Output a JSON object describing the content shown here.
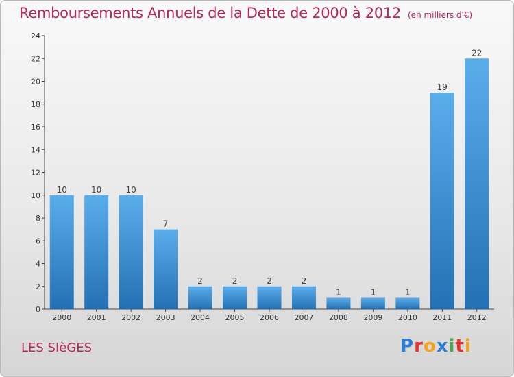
{
  "header": {
    "title": "Remboursements Annuels de la Dette de 2000 à 2012",
    "unit": "(en milliers d'€)"
  },
  "footer": {
    "commune": "LES SIèGES",
    "logo": {
      "letters": [
        "P",
        "r",
        "o",
        "x",
        "i",
        "t",
        "i"
      ],
      "colors": [
        "#2a7fd4",
        "#e8312f",
        "#f3a21b",
        "#2a7fd4",
        "#4aa84c",
        "#e8312f",
        "#f3a21b"
      ]
    }
  },
  "chart_data": {
    "type": "bar",
    "categories": [
      "2000",
      "2001",
      "2002",
      "2003",
      "2004",
      "2005",
      "2006",
      "2007",
      "2008",
      "2009",
      "2010",
      "2011",
      "2012"
    ],
    "values": [
      10,
      10,
      10,
      7,
      2,
      2,
      2,
      2,
      1,
      1,
      1,
      19,
      22
    ],
    "ylim": [
      0,
      24
    ],
    "yticks": [
      0,
      2,
      4,
      6,
      8,
      10,
      12,
      14,
      16,
      18,
      20,
      22,
      24
    ],
    "grid": false,
    "bar_color": "#3d93d8"
  }
}
